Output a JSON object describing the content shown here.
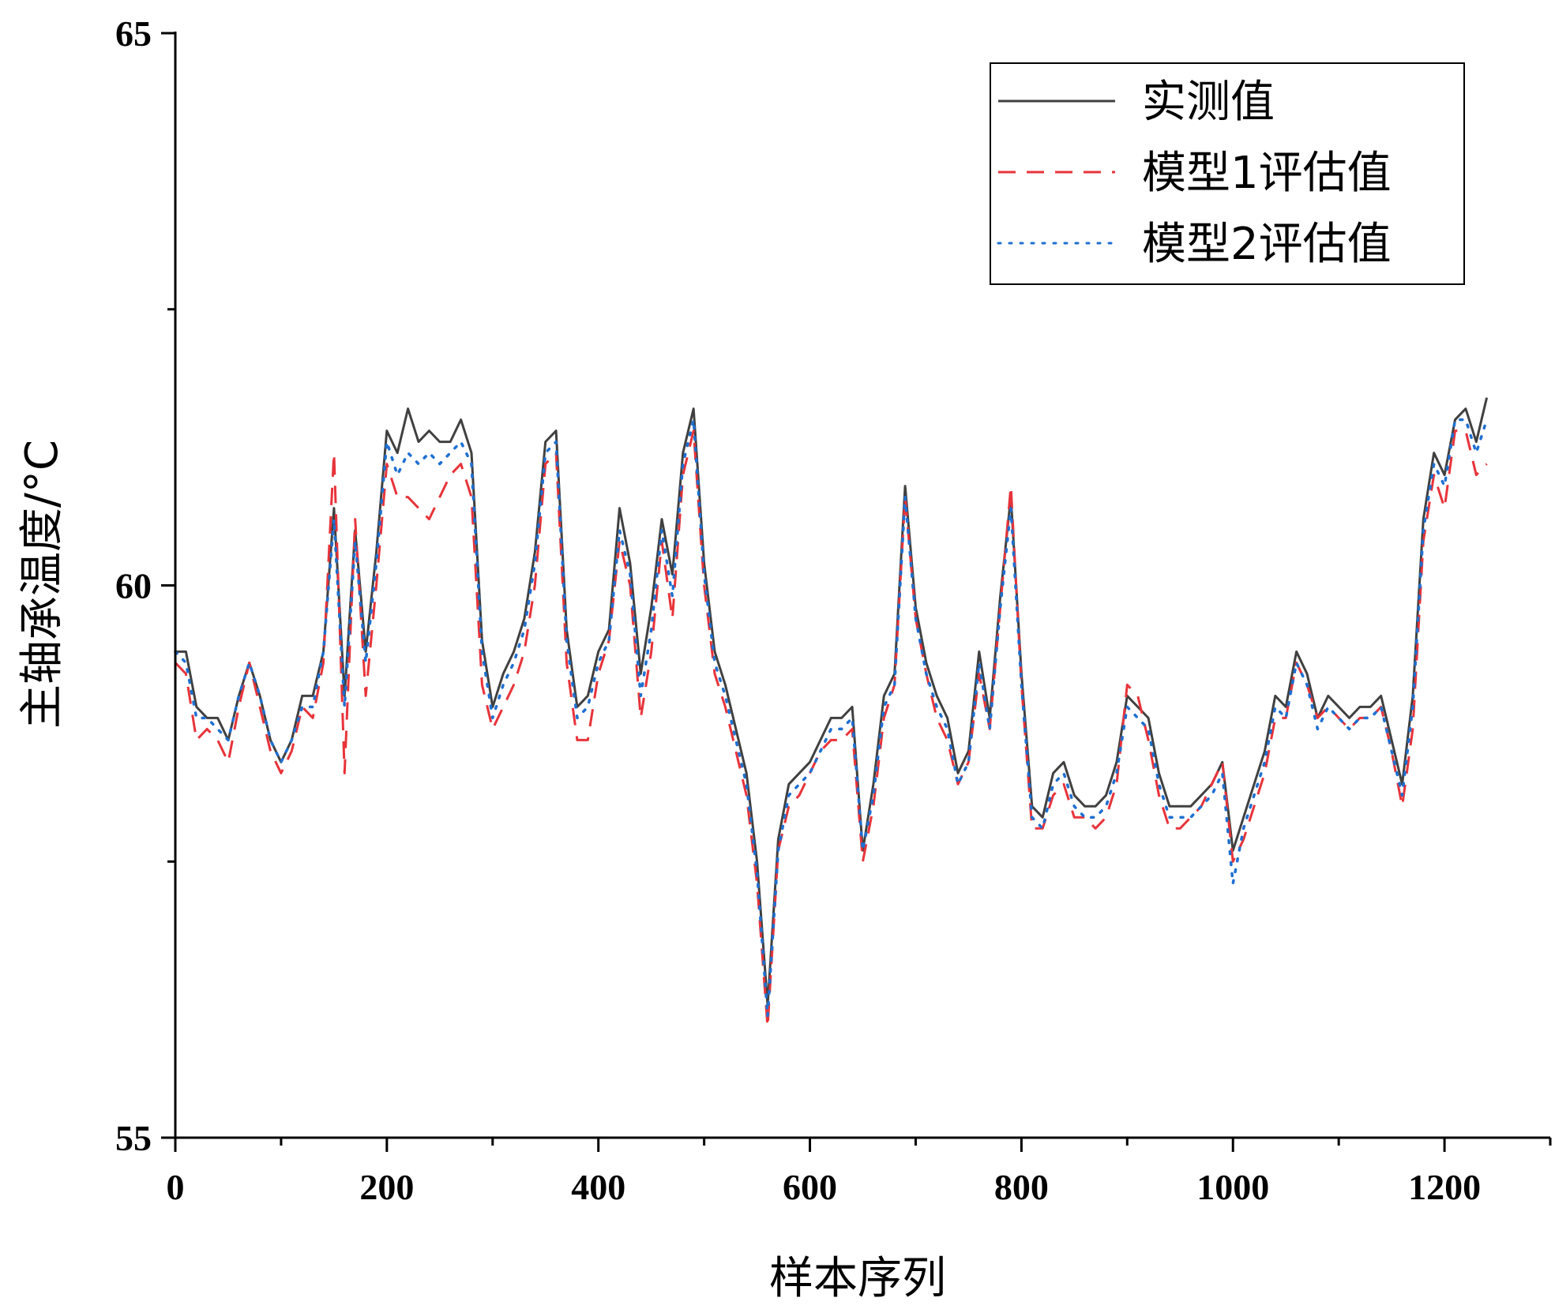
{
  "chart_data": {
    "type": "line",
    "title": "",
    "xlabel": "样本序列",
    "ylabel": "主轴承温度/°C",
    "xlim": [
      0,
      1300
    ],
    "ylim": [
      55,
      65
    ],
    "x_ticks": [
      "0",
      "200",
      "400",
      "600",
      "800",
      "1000",
      "1200"
    ],
    "x_tick_values": [
      0,
      200,
      400,
      600,
      800,
      1000,
      1200
    ],
    "x_minor_tick_values": [
      100,
      300,
      500,
      700,
      900,
      1100,
      1300
    ],
    "y_ticks": [
      "55",
      "60",
      "65"
    ],
    "y_tick_values": [
      55,
      60,
      65
    ],
    "y_minor_tick_values": [
      57.5,
      62.5
    ],
    "grid": false,
    "legend_position": "top-right",
    "x": [
      0,
      10,
      20,
      30,
      40,
      50,
      60,
      70,
      80,
      90,
      100,
      110,
      120,
      130,
      140,
      150,
      160,
      170,
      180,
      190,
      200,
      210,
      220,
      230,
      240,
      250,
      260,
      270,
      280,
      290,
      300,
      310,
      320,
      330,
      340,
      350,
      360,
      370,
      380,
      390,
      400,
      410,
      420,
      430,
      440,
      450,
      460,
      470,
      480,
      490,
      500,
      510,
      520,
      530,
      540,
      550,
      560,
      570,
      580,
      590,
      600,
      610,
      620,
      630,
      640,
      650,
      660,
      670,
      680,
      690,
      700,
      710,
      720,
      730,
      740,
      750,
      760,
      770,
      780,
      790,
      800,
      810,
      820,
      830,
      840,
      850,
      860,
      870,
      880,
      890,
      900,
      910,
      920,
      930,
      940,
      950,
      960,
      970,
      980,
      990,
      1000,
      1010,
      1020,
      1030,
      1040,
      1050,
      1060,
      1070,
      1080,
      1090,
      1100,
      1110,
      1120,
      1130,
      1140,
      1150,
      1160,
      1170,
      1180,
      1190,
      1200,
      1210,
      1220,
      1230,
      1240
    ],
    "series": [
      {
        "name": "实测值",
        "color": "#404040",
        "style": "solid",
        "values": [
          59.4,
          59.4,
          58.9,
          58.8,
          58.8,
          58.6,
          59.0,
          59.3,
          59.0,
          58.6,
          58.4,
          58.6,
          59.0,
          59.0,
          59.4,
          60.7,
          59.0,
          60.5,
          59.4,
          60.3,
          61.4,
          61.2,
          61.6,
          61.3,
          61.4,
          61.3,
          61.3,
          61.5,
          61.2,
          59.5,
          58.9,
          59.2,
          59.4,
          59.7,
          60.3,
          61.3,
          61.4,
          59.6,
          58.9,
          59.0,
          59.4,
          59.6,
          60.7,
          60.2,
          59.2,
          59.8,
          60.6,
          60.1,
          61.2,
          61.6,
          60.2,
          59.4,
          59.1,
          58.7,
          58.3,
          57.5,
          56.2,
          57.7,
          58.2,
          58.3,
          58.4,
          58.6,
          58.8,
          58.8,
          58.9,
          57.6,
          58.2,
          59.0,
          59.2,
          60.9,
          59.8,
          59.3,
          59.0,
          58.8,
          58.3,
          58.5,
          59.4,
          58.8,
          59.9,
          60.8,
          59.2,
          58.0,
          57.9,
          58.3,
          58.4,
          58.1,
          58.0,
          58.0,
          58.1,
          58.4,
          59.0,
          58.9,
          58.8,
          58.3,
          58.0,
          58.0,
          58.0,
          58.1,
          58.2,
          58.4,
          57.6,
          57.9,
          58.2,
          58.5,
          59.0,
          58.9,
          59.4,
          59.2,
          58.8,
          59.0,
          58.9,
          58.8,
          58.9,
          58.9,
          59.0,
          58.6,
          58.2,
          59.0,
          60.6,
          61.2,
          61.0,
          61.5,
          61.6,
          61.3,
          61.7
        ]
      },
      {
        "name": "模型1评估值",
        "color": "#e8333a",
        "style": "dashed",
        "values": [
          59.3,
          59.2,
          58.6,
          58.7,
          58.6,
          58.4,
          58.9,
          59.3,
          58.9,
          58.5,
          58.3,
          58.5,
          58.9,
          58.8,
          59.3,
          61.2,
          58.3,
          60.6,
          59.0,
          60.0,
          61.1,
          60.8,
          60.8,
          60.7,
          60.6,
          60.8,
          61.0,
          61.1,
          60.8,
          59.1,
          58.7,
          58.9,
          59.1,
          59.4,
          60.0,
          61.1,
          61.2,
          59.3,
          58.6,
          58.6,
          59.2,
          59.5,
          60.4,
          60.0,
          58.8,
          59.4,
          60.4,
          59.7,
          61.0,
          61.4,
          60.0,
          59.2,
          58.9,
          58.5,
          58.1,
          57.3,
          56.0,
          57.6,
          58.0,
          58.1,
          58.3,
          58.5,
          58.6,
          58.6,
          58.7,
          57.5,
          58.0,
          58.8,
          59.1,
          60.8,
          59.7,
          59.2,
          58.8,
          58.6,
          58.2,
          58.4,
          59.2,
          58.7,
          59.8,
          60.9,
          59.1,
          57.8,
          57.8,
          58.1,
          58.2,
          57.9,
          57.9,
          57.8,
          57.9,
          58.2,
          59.1,
          59.0,
          58.6,
          58.1,
          57.8,
          57.8,
          57.9,
          58.0,
          58.2,
          58.4,
          57.5,
          57.7,
          58.0,
          58.3,
          58.8,
          58.8,
          59.3,
          59.1,
          58.8,
          58.9,
          58.8,
          58.7,
          58.8,
          58.8,
          58.9,
          58.5,
          58.0,
          58.7,
          60.4,
          61.0,
          60.7,
          61.4,
          61.4,
          61.0,
          61.1
        ]
      },
      {
        "name": "模型2评估值",
        "color": "#1f6fd1",
        "style": "dotted",
        "values": [
          59.4,
          59.3,
          58.8,
          58.8,
          58.7,
          58.6,
          59.0,
          59.3,
          59.0,
          58.6,
          58.4,
          58.6,
          58.9,
          58.9,
          59.4,
          60.6,
          58.9,
          60.4,
          59.3,
          60.2,
          61.3,
          61.0,
          61.2,
          61.1,
          61.2,
          61.1,
          61.2,
          61.3,
          61.1,
          59.4,
          58.8,
          59.1,
          59.3,
          59.6,
          60.2,
          61.2,
          61.3,
          59.5,
          58.8,
          58.9,
          59.3,
          59.5,
          60.5,
          60.1,
          59.0,
          59.6,
          60.5,
          59.9,
          61.1,
          61.5,
          60.1,
          59.3,
          59.0,
          58.6,
          58.2,
          57.4,
          56.1,
          57.6,
          58.1,
          58.2,
          58.3,
          58.5,
          58.7,
          58.7,
          58.8,
          57.6,
          58.1,
          58.9,
          59.1,
          60.8,
          59.7,
          59.2,
          58.9,
          58.7,
          58.2,
          58.4,
          59.3,
          58.7,
          59.8,
          60.7,
          59.1,
          57.9,
          57.8,
          58.2,
          58.3,
          58.0,
          57.9,
          57.9,
          58.0,
          58.3,
          58.9,
          58.8,
          58.7,
          58.2,
          57.9,
          57.9,
          57.9,
          58.0,
          58.1,
          58.3,
          57.3,
          57.8,
          58.1,
          58.4,
          58.9,
          58.8,
          59.3,
          59.1,
          58.7,
          58.9,
          58.8,
          58.7,
          58.8,
          58.8,
          58.9,
          58.5,
          58.1,
          58.9,
          60.5,
          61.1,
          60.9,
          61.5,
          61.5,
          61.2,
          61.5
        ]
      }
    ]
  }
}
